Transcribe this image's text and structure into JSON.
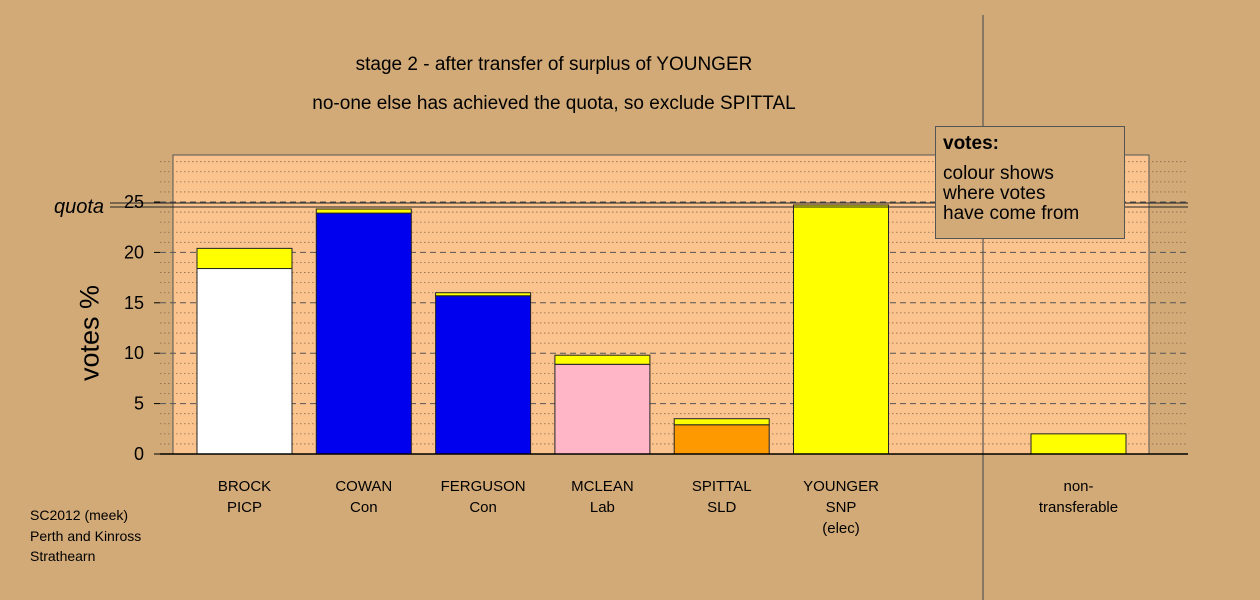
{
  "title_line1": "stage 2 - after transfer of surplus of YOUNGER",
  "title_line2": "no-one else has achieved the quota, so exclude SPITTAL",
  "quota_label": "quota",
  "legend": {
    "title": "votes:",
    "lines": [
      "colour shows",
      "where votes",
      "have come from"
    ]
  },
  "footer": [
    "SC2012 (meek)",
    "Perth and Kinross",
    "Strathearn"
  ],
  "colors": {
    "background": "#d2aa78",
    "plot_fill": "#fbc48f",
    "transferred": "#ffff00",
    "PICP": "#ffffff",
    "Con": "#0000ee",
    "Lab": "#ffb6c6",
    "SLD": "#ff9900",
    "SNP": "#ffff00"
  },
  "chart_data": {
    "type": "bar",
    "stacked": true,
    "ylabel": "votes %",
    "ylim": [
      0,
      30
    ],
    "yticks": [
      0,
      5,
      10,
      15,
      20,
      25
    ],
    "quota": 24.7,
    "categories": [
      {
        "lines": [
          "BROCK",
          "PICP"
        ],
        "segments": [
          {
            "value": 18.4,
            "source": "PICP"
          },
          {
            "value": 2.0,
            "source": "SNP"
          }
        ]
      },
      {
        "lines": [
          "COWAN",
          "Con"
        ],
        "segments": [
          {
            "value": 23.9,
            "source": "Con"
          },
          {
            "value": 0.4,
            "source": "SNP"
          }
        ]
      },
      {
        "lines": [
          "FERGUSON",
          "Con"
        ],
        "segments": [
          {
            "value": 15.7,
            "source": "Con"
          },
          {
            "value": 0.3,
            "source": "SNP"
          }
        ]
      },
      {
        "lines": [
          "MCLEAN",
          "Lab"
        ],
        "segments": [
          {
            "value": 8.9,
            "source": "Lab"
          },
          {
            "value": 0.9,
            "source": "SNP"
          }
        ]
      },
      {
        "lines": [
          "SPITTAL",
          "SLD"
        ],
        "segments": [
          {
            "value": 2.9,
            "source": "SLD"
          },
          {
            "value": 0.6,
            "source": "SNP"
          }
        ]
      },
      {
        "lines": [
          "YOUNGER",
          "SNP",
          "(elec)"
        ],
        "segments": [
          {
            "value": 24.7,
            "source": "SNP"
          }
        ]
      }
    ],
    "nontransferable": {
      "lines": [
        "non-",
        "transferable"
      ],
      "value": 2.0,
      "source": "SNP"
    }
  }
}
